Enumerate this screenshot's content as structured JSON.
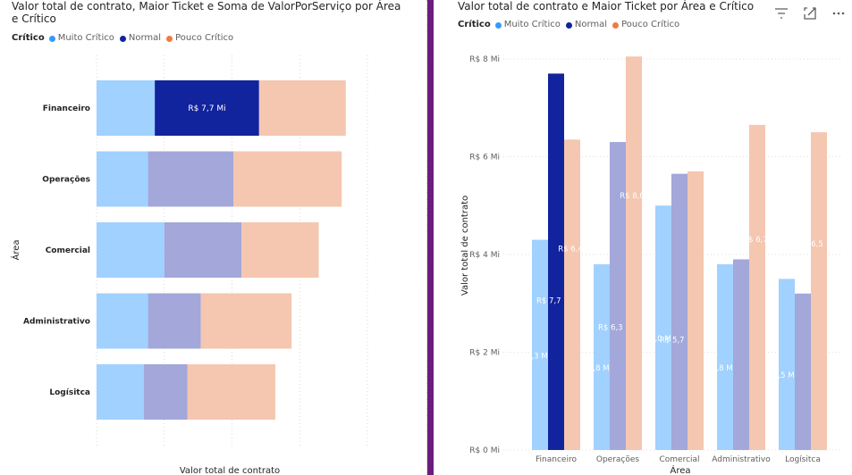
{
  "colors": {
    "muito_critico": "#a0d1ff",
    "normal": "#12239e",
    "normal_faded": "#a3a7d9",
    "pouco_critico": "#f5c6b0",
    "dot_muito": "#3399ff",
    "dot_normal": "#12239e",
    "dot_pouco": "#f07a43",
    "divider": "#6b1d7c"
  },
  "left": {
    "title": "Valor total de contrato, Maior Ticket e Soma de ValorPorServiço por Área e Crítico",
    "legend": {
      "title": "Crítico",
      "items": [
        "Muito Crítico",
        "Normal",
        "Pouco Crítico"
      ]
    }
  },
  "right": {
    "title": "Valor total de contrato e Maior Ticket por Área e Crítico",
    "legend": {
      "title": "Crítico",
      "items": [
        "Muito Crítico",
        "Normal",
        "Pouco Crítico"
      ]
    },
    "icons": [
      "filter-icon",
      "focus-mode-icon",
      "more-options-icon"
    ]
  },
  "chart_data": [
    {
      "type": "bar",
      "orientation": "horizontal",
      "stacked": true,
      "title": "Valor total de contrato, Maior Ticket e Soma de ValorPorServiço por Área e Crítico",
      "ylabel": "Área",
      "xlabel": "Valor total de contrato",
      "categories": [
        "Financeiro",
        "Operações",
        "Comercial",
        "Administrativo",
        "Logísitca"
      ],
      "series": [
        {
          "name": "Muito Crítico",
          "values": [
            4.3,
            3.8,
            5.0,
            3.8,
            3.5
          ]
        },
        {
          "name": "Normal",
          "values": [
            7.7,
            6.3,
            5.7,
            3.9,
            3.2
          ]
        },
        {
          "name": "Pouco Crítico",
          "values": [
            6.4,
            8.0,
            5.7,
            6.7,
            6.5
          ]
        }
      ],
      "highlighted_series": "Normal",
      "data_labels": [
        {
          "category": "Financeiro",
          "series": "Normal",
          "text": "R$ 7,7 Mi"
        }
      ],
      "xlim": [
        0,
        20
      ],
      "grid": true,
      "legend_position": "top-left"
    },
    {
      "type": "bar",
      "orientation": "vertical",
      "stacked": false,
      "title": "Valor total de contrato e Maior Ticket por Área e Crítico",
      "xlabel": "Área",
      "ylabel": "Valor total de contrato",
      "categories": [
        "Financeiro",
        "Operações",
        "Comercial",
        "Administrativo",
        "Logísitca"
      ],
      "series": [
        {
          "name": "Muito Crítico",
          "values": [
            4.3,
            3.8,
            5.0,
            3.8,
            3.5
          ],
          "labels": [
            "4,3 Mi",
            "3,8 Mi",
            "5,0 Mi",
            "3,8 Mi",
            "3,5 Mi"
          ]
        },
        {
          "name": "Normal",
          "values": [
            7.7,
            6.3,
            5.65,
            3.9,
            3.2
          ],
          "labels": [
            "R$ 7,7 Mi",
            "R$ 6,3 Mi",
            "R$ 5,7 Mi",
            "",
            ""
          ]
        },
        {
          "name": "Pouco Crítico",
          "values": [
            6.35,
            8.05,
            5.7,
            6.65,
            6.5
          ],
          "labels": [
            "R$ 6,4",
            "R$ 8,0",
            "",
            "R$ 6,7",
            "6,5"
          ]
        }
      ],
      "highlighted": {
        "category": "Financeiro",
        "series": "Normal"
      },
      "yticks": [
        "R$ 0 Mi",
        "R$ 2 Mi",
        "R$ 4 Mi",
        "R$ 6 Mi",
        "R$ 8 Mi"
      ],
      "ylim": [
        0,
        8
      ],
      "grid": true,
      "legend_position": "top-left"
    }
  ]
}
